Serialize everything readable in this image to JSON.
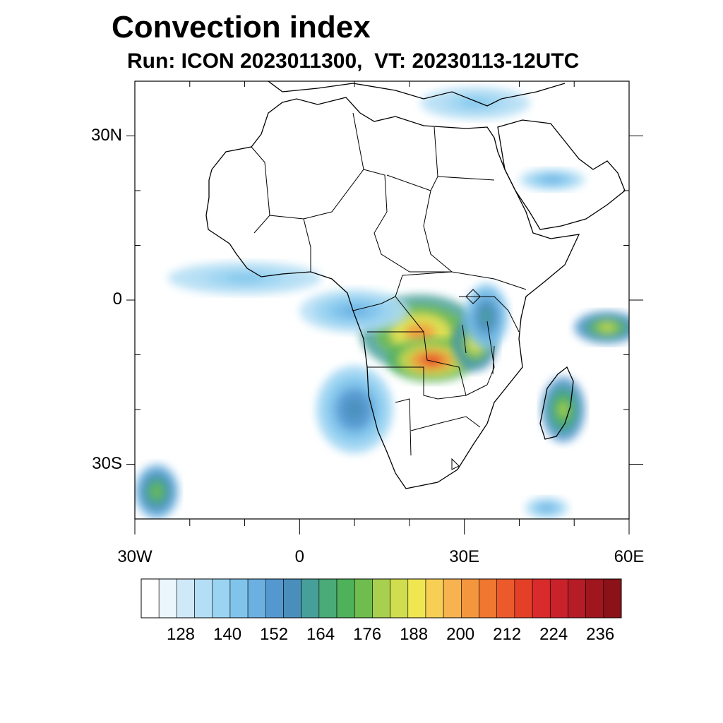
{
  "title": "Convection index",
  "subtitle": "Run: ICON 2023011300,  VT: 20230113-12UTC",
  "map": {
    "lon_range": [
      -30,
      60
    ],
    "lat_range": [
      -40,
      40
    ],
    "lat_ticks": [
      {
        "value": 30,
        "label": "30N"
      },
      {
        "value": 0,
        "label": "0"
      },
      {
        "value": -30,
        "label": "30S"
      }
    ],
    "lon_ticks": [
      {
        "value": -30,
        "label": "30W"
      },
      {
        "value": 0,
        "label": "0"
      },
      {
        "value": 30,
        "label": "30E"
      },
      {
        "value": 60,
        "label": "60E"
      }
    ],
    "minor_lat_ticks": [
      40,
      20,
      10,
      -10,
      -20,
      -40
    ],
    "minor_lon_ticks": [
      -20,
      -10,
      10,
      20,
      40,
      50
    ]
  },
  "colorbar": {
    "colors": [
      "#ffffff",
      "#eaf5fc",
      "#cfe9f8",
      "#b4def5",
      "#9ad4f2",
      "#80c4ec",
      "#6bb0e0",
      "#5598d0",
      "#4a8ebc",
      "#479f9a",
      "#4aaa78",
      "#4db25a",
      "#70bd4f",
      "#a8cf4e",
      "#cfdd4e",
      "#f0e652",
      "#f8cf55",
      "#f7b350",
      "#f4963e",
      "#f0772f",
      "#ec5a2b",
      "#e44028",
      "#d92b2b",
      "#c9222b",
      "#b51c26",
      "#a0161f",
      "#8a1218"
    ],
    "labels": [
      {
        "text": "128",
        "index": 3
      },
      {
        "text": "140",
        "index": 6
      },
      {
        "text": "152",
        "index": 9
      },
      {
        "text": "164",
        "index": 12
      },
      {
        "text": "176",
        "index": 15
      },
      {
        "text": "188",
        "index": 18
      },
      {
        "text": "200",
        "index": 21
      },
      {
        "text": "212",
        "index": 24
      },
      {
        "text": "224",
        "index": 27
      },
      {
        "text": "236",
        "index": 30
      }
    ]
  },
  "field_regions": [
    {
      "name": "congo-basin",
      "lon": 22,
      "lat": -6,
      "rx": 11,
      "ry": 7,
      "level": 18
    },
    {
      "name": "angola-zambia",
      "lon": 24,
      "lat": -11,
      "rx": 8,
      "ry": 4,
      "level": 21
    },
    {
      "name": "lake-region",
      "lon": 32,
      "lat": -8,
      "rx": 4,
      "ry": 5,
      "level": 15
    },
    {
      "name": "east-africa",
      "lon": 34,
      "lat": -3,
      "rx": 4,
      "ry": 6,
      "level": 9
    },
    {
      "name": "gulf-of-guinea",
      "lon": 10,
      "lat": -2,
      "rx": 10,
      "ry": 4,
      "level": 6
    },
    {
      "name": "atlantic-band",
      "lon": -10,
      "lat": 4,
      "rx": 14,
      "ry": 3,
      "level": 5
    },
    {
      "name": "sw-band",
      "lon": 10,
      "lat": -20,
      "rx": 7,
      "ry": 8,
      "level": 8
    },
    {
      "name": "madagascar",
      "lon": 48,
      "lat": -20,
      "rx": 4,
      "ry": 6,
      "level": 13
    },
    {
      "name": "indian-ocean",
      "lon": 56,
      "lat": -5,
      "rx": 6,
      "ry": 3,
      "level": 14
    },
    {
      "name": "arabian-peninsula",
      "lon": 46,
      "lat": 22,
      "rx": 6,
      "ry": 2,
      "level": 6
    },
    {
      "name": "mediterranean",
      "lon": 32,
      "lat": 36,
      "rx": 10,
      "ry": 3,
      "level": 5
    },
    {
      "name": "south-atlantic",
      "lon": -26,
      "lat": -35,
      "rx": 4,
      "ry": 5,
      "level": 12
    },
    {
      "name": "sw-indian",
      "lon": 45,
      "lat": -38,
      "rx": 4,
      "ry": 2,
      "level": 6
    }
  ]
}
